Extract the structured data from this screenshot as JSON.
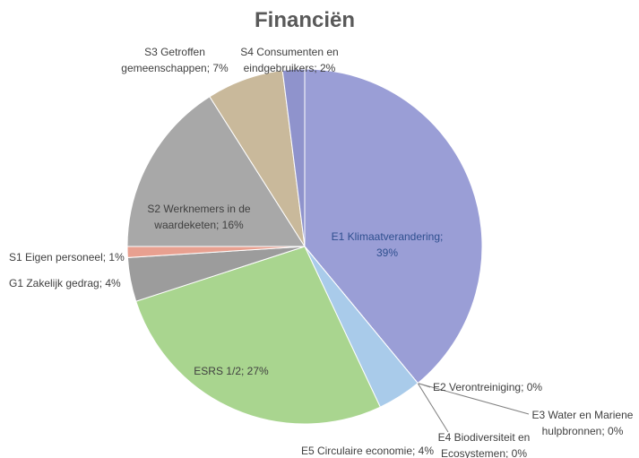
{
  "chart_data": {
    "type": "pie",
    "title": "Financiën",
    "labels": [
      [
        "E1 Klimaatverandering;",
        "39%"
      ],
      [
        "E2 Verontreiniging; 0%"
      ],
      [
        "E3 Water en Mariene",
        "hulpbronnen; 0%"
      ],
      [
        "E4 Biodiversiteit en",
        "Ecosystemen; 0%"
      ],
      [
        "E5 Circulaire economie; 4%"
      ],
      [
        "ESRS 1/2; 27%"
      ],
      [
        "G1 Zakelijk gedrag; 4%"
      ],
      [
        "S1 Eigen personeel; 1%"
      ],
      [
        "S2 Werknemers in de",
        "waardeketen; 16%"
      ],
      [
        "S3 Getroffen",
        "gemeenschappen; 7%"
      ],
      [
        "S4 Consumenten en",
        "eindgebruikers; 2%"
      ]
    ],
    "values": [
      39,
      0,
      0,
      0,
      4,
      27,
      4,
      1,
      16,
      7,
      2
    ],
    "colors": [
      "#9a9ed6",
      "#f0a070",
      "#a9cbea",
      "#a9cbea",
      "#a9cbea",
      "#a9d58f",
      "#9c9c9c",
      "#e8a090",
      "#a8a8a8",
      "#c9b99b",
      "#8f93cc"
    ]
  }
}
